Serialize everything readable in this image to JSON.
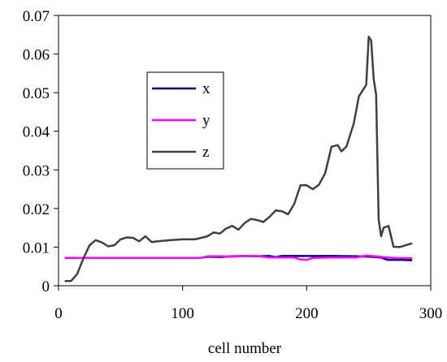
{
  "chart_data": {
    "type": "line",
    "title": "",
    "xlabel": "cell number",
    "ylabel": "",
    "xlim": [
      0,
      300
    ],
    "ylim": [
      0,
      0.07
    ],
    "x_ticks": [
      0,
      100,
      200,
      300
    ],
    "x_tick_labels": [
      "0",
      "100",
      "200",
      "300"
    ],
    "y_ticks": [
      0,
      0.01,
      0.02,
      0.03,
      0.04,
      0.05,
      0.06,
      0.07
    ],
    "y_tick_labels": [
      "0",
      "0.01",
      "0.02",
      "0.03",
      "0.04",
      "0.05",
      "0.06",
      "0.07"
    ],
    "grid": false,
    "legend_position": "upper-left",
    "series": [
      {
        "name": "x",
        "color": "#000080",
        "points": [
          [
            5,
            0.0072
          ],
          [
            40,
            0.0072
          ],
          [
            80,
            0.0072
          ],
          [
            115,
            0.0072
          ],
          [
            120,
            0.0075
          ],
          [
            130,
            0.0074
          ],
          [
            140,
            0.0076
          ],
          [
            150,
            0.0077
          ],
          [
            160,
            0.0076
          ],
          [
            170,
            0.0077
          ],
          [
            175,
            0.0074
          ],
          [
            180,
            0.0077
          ],
          [
            200,
            0.0077
          ],
          [
            220,
            0.0077
          ],
          [
            240,
            0.0076
          ],
          [
            250,
            0.0075
          ],
          [
            260,
            0.0073
          ],
          [
            265,
            0.0067
          ],
          [
            275,
            0.0067
          ],
          [
            285,
            0.0066
          ]
        ]
      },
      {
        "name": "y",
        "color": "#ff00ff",
        "points": [
          [
            5,
            0.0072
          ],
          [
            40,
            0.0072
          ],
          [
            80,
            0.0072
          ],
          [
            115,
            0.0072
          ],
          [
            120,
            0.0076
          ],
          [
            130,
            0.0076
          ],
          [
            140,
            0.0075
          ],
          [
            150,
            0.0077
          ],
          [
            160,
            0.0077
          ],
          [
            170,
            0.0073
          ],
          [
            180,
            0.0073
          ],
          [
            190,
            0.0073
          ],
          [
            195,
            0.0068
          ],
          [
            200,
            0.0067
          ],
          [
            205,
            0.0072
          ],
          [
            220,
            0.0073
          ],
          [
            240,
            0.0073
          ],
          [
            248,
            0.0078
          ],
          [
            255,
            0.0076
          ],
          [
            262,
            0.0074
          ],
          [
            270,
            0.0072
          ],
          [
            285,
            0.0071
          ]
        ]
      },
      {
        "name": "z",
        "color": "#404040",
        "points": [
          [
            5,
            0.0012
          ],
          [
            10,
            0.0012
          ],
          [
            15,
            0.003
          ],
          [
            20,
            0.007
          ],
          [
            25,
            0.0105
          ],
          [
            30,
            0.0118
          ],
          [
            35,
            0.0112
          ],
          [
            40,
            0.0102
          ],
          [
            45,
            0.0105
          ],
          [
            50,
            0.012
          ],
          [
            55,
            0.0125
          ],
          [
            60,
            0.0124
          ],
          [
            65,
            0.0115
          ],
          [
            70,
            0.0128
          ],
          [
            75,
            0.0113
          ],
          [
            80,
            0.0115
          ],
          [
            90,
            0.0118
          ],
          [
            100,
            0.012
          ],
          [
            110,
            0.012
          ],
          [
            120,
            0.0128
          ],
          [
            125,
            0.0138
          ],
          [
            130,
            0.0135
          ],
          [
            135,
            0.0148
          ],
          [
            140,
            0.0155
          ],
          [
            145,
            0.0145
          ],
          [
            150,
            0.0162
          ],
          [
            155,
            0.0173
          ],
          [
            160,
            0.017
          ],
          [
            165,
            0.0165
          ],
          [
            170,
            0.0178
          ],
          [
            175,
            0.0195
          ],
          [
            180,
            0.0193
          ],
          [
            185,
            0.0185
          ],
          [
            190,
            0.0212
          ],
          [
            195,
            0.026
          ],
          [
            200,
            0.026
          ],
          [
            205,
            0.025
          ],
          [
            210,
            0.0262
          ],
          [
            215,
            0.0292
          ],
          [
            220,
            0.036
          ],
          [
            225,
            0.0364
          ],
          [
            228,
            0.0348
          ],
          [
            232,
            0.036
          ],
          [
            238,
            0.042
          ],
          [
            242,
            0.049
          ],
          [
            245,
            0.0505
          ],
          [
            248,
            0.052
          ],
          [
            250,
            0.0645
          ],
          [
            252,
            0.0635
          ],
          [
            254,
            0.0535
          ],
          [
            256,
            0.0495
          ],
          [
            258,
            0.0172
          ],
          [
            260,
            0.0128
          ],
          [
            262,
            0.015
          ],
          [
            266,
            0.0155
          ],
          [
            270,
            0.0101
          ],
          [
            275,
            0.01
          ],
          [
            280,
            0.0105
          ],
          [
            285,
            0.011
          ]
        ]
      }
    ]
  }
}
